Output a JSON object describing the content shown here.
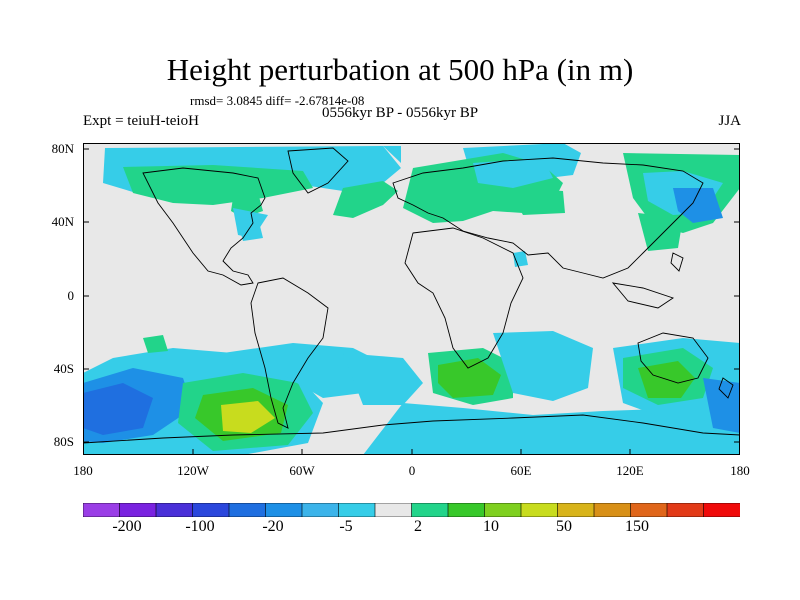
{
  "title": "Height perturbation at 500 hPa (in m)",
  "stats": "rmsd= 3.0845 diff= -2.67814e-08",
  "subtitle": "0556kyr BP - 0556kyr BP",
  "experiment": "Expt = teiuH-teioH",
  "season": "JJA",
  "lat_labels": [
    "80N",
    "40N",
    "0",
    "40S",
    "80S"
  ],
  "lon_labels": [
    "180",
    "120W",
    "60W",
    "0",
    "60E",
    "120E",
    "180"
  ],
  "colorbar": {
    "colors": [
      "#9a3ee6",
      "#7a22e0",
      "#4a30d8",
      "#2b47dc",
      "#1f6fe0",
      "#1e90e6",
      "#3cb4ea",
      "#36cde8",
      "#e8e8e8",
      "#22d48a",
      "#38c82a",
      "#7fd020",
      "#c8dc1e",
      "#d8b41a",
      "#d89018",
      "#e0661a",
      "#e23a18",
      "#f00a0a"
    ],
    "labels": [
      "-200",
      "-100",
      "-20",
      "-5",
      "2",
      "10",
      "50",
      "150"
    ]
  },
  "colors": {
    "background": "#e8e8e8",
    "blue_light": "#36cde8",
    "blue_mid": "#1e90e6",
    "blue_dark": "#1f6fe0",
    "green_light": "#22d48a",
    "green_mid": "#38c82a",
    "yellow_green": "#c8dc1e"
  }
}
